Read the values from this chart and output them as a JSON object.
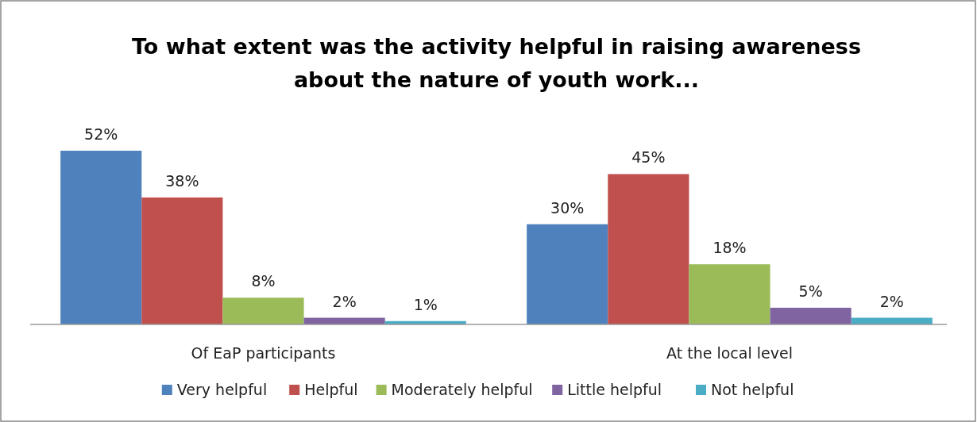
{
  "chart_data": {
    "type": "bar",
    "title": "To what extent was the activity helpful in raising awareness about the nature of youth work...",
    "categories": [
      "Of EaP participants",
      "At the local level"
    ],
    "series": [
      {
        "name": "Very helpful",
        "color": "#4f81bd",
        "values": [
          52,
          30
        ],
        "value_labels": [
          "52%",
          "30%"
        ]
      },
      {
        "name": "Helpful",
        "color": "#c0504d",
        "values": [
          38,
          45
        ],
        "value_labels": [
          "38%",
          "45%"
        ]
      },
      {
        "name": "Moderately helpful",
        "color": "#9bbb59",
        "values": [
          8,
          18
        ],
        "value_labels": [
          "8%",
          "18%"
        ]
      },
      {
        "name": "Little helpful",
        "color": "#8064a2",
        "values": [
          2,
          5
        ],
        "value_labels": [
          "2%",
          "5%"
        ]
      },
      {
        "name": "Not helpful",
        "color": "#4bacc6",
        "values": [
          1,
          2
        ],
        "value_labels": [
          "1%",
          "2%"
        ]
      }
    ],
    "legend": "bottom"
  }
}
